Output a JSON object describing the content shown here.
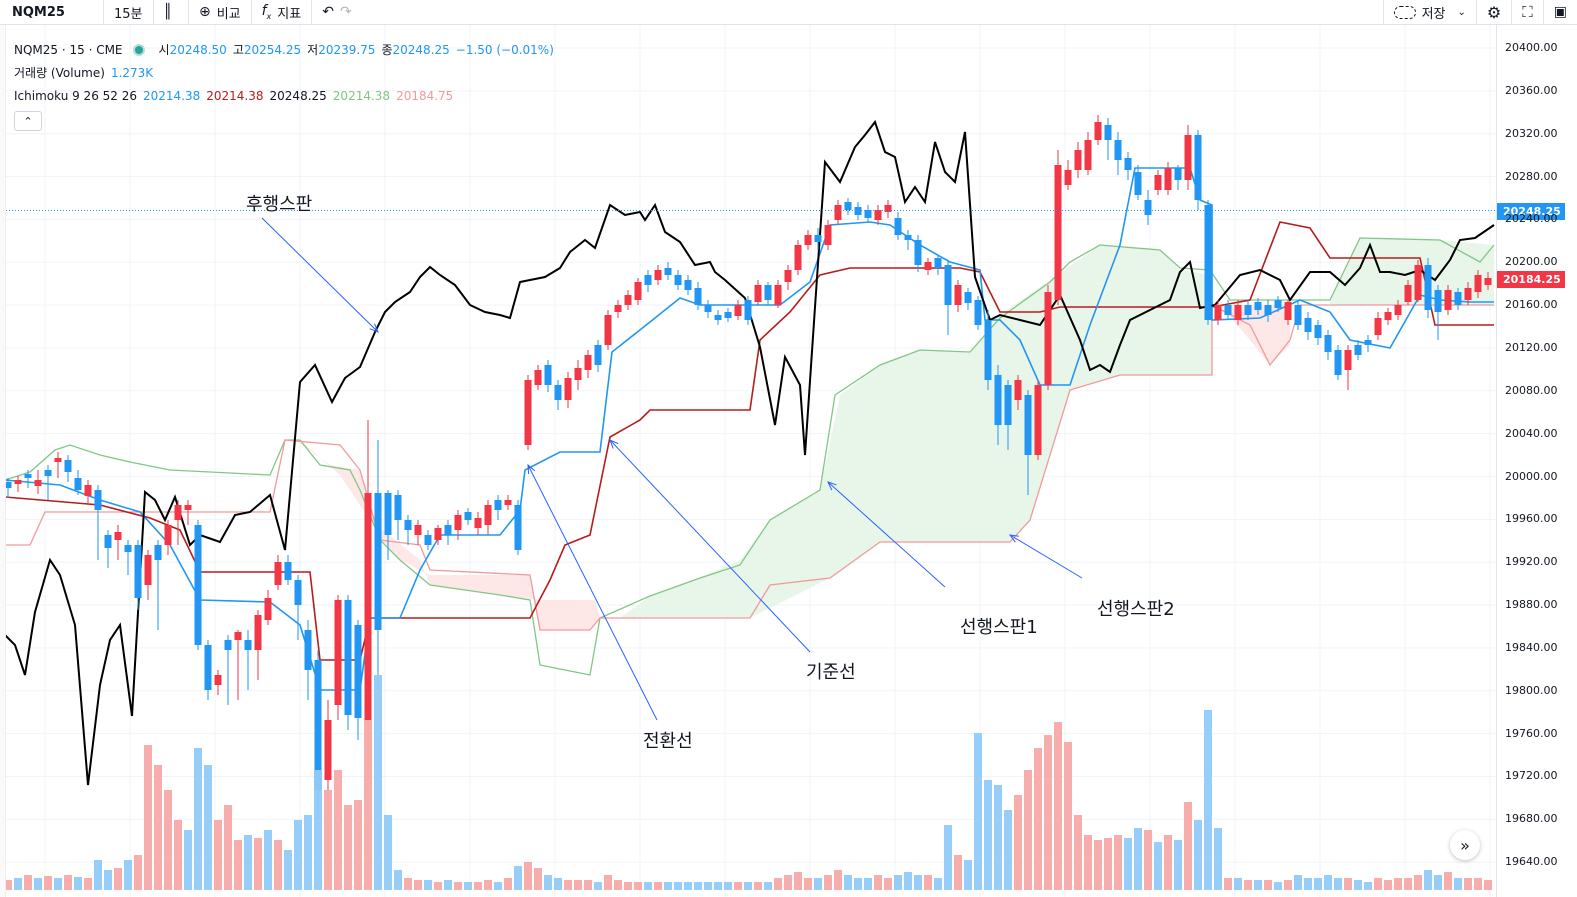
{
  "toolbar": {
    "symbol": "NQM25",
    "interval": "15분",
    "compare": "비교",
    "indicators": "지표",
    "save": "저장",
    "icons": [
      "candlestick-icon",
      "plus-circle-icon",
      "fx-icon",
      "undo-icon",
      "redo-icon",
      "cloud-icon",
      "gear-icon",
      "fullscreen-icon",
      "camera-icon"
    ]
  },
  "legend": {
    "title": "NQM25 · 15 · CME",
    "open_label": "시",
    "open": "20248.50",
    "high_label": "고",
    "high": "20254.25",
    "low_label": "저",
    "low": "20239.75",
    "close_label": "종",
    "close": "20248.25",
    "change": "−1.50 (−0.01%)",
    "volume_label": "거래량 (Volume)",
    "volume_value": "1.273K",
    "ichimoku_label": "Ichimoku 9 26 52 26",
    "ichimoku_values": [
      "20214.38",
      "20214.38",
      "20248.25",
      "20214.38",
      "20184.75"
    ],
    "ichimoku_colors": [
      "#2196f3",
      "#b71c1c",
      "#131722",
      "#81c784",
      "#ef9a9a"
    ]
  },
  "annotations": {
    "lagging_span": "후행스판",
    "leading_span1": "선행스판1",
    "leading_span2": "선행스판2",
    "base_line": "기준선",
    "conversion_line": "전환선"
  },
  "price_axis": {
    "ticks": [
      "20400.00",
      "20360.00",
      "20320.00",
      "20280.00",
      "20240.00",
      "20200.00",
      "20160.00",
      "20120.00",
      "20080.00",
      "20040.00",
      "20000.00",
      "19960.00",
      "19920.00",
      "19880.00",
      "19840.00",
      "19800.00",
      "19760.00",
      "19720.00",
      "19680.00",
      "19640.00"
    ],
    "last_price": "20248.25",
    "span_b_price": "20184.25",
    "last_price_color": "#2196f3",
    "span_b_color": "#f23645"
  },
  "colors": {
    "up": "#f23645",
    "down": "#2196f3",
    "conversion": "#2196f3",
    "base": "#b71c1c",
    "lagging": "#000000",
    "span_a": "#81c784",
    "span_b": "#ef9a9a",
    "cloud_bull": "#e8f5e9",
    "cloud_bear": "#fde7e7"
  }
}
